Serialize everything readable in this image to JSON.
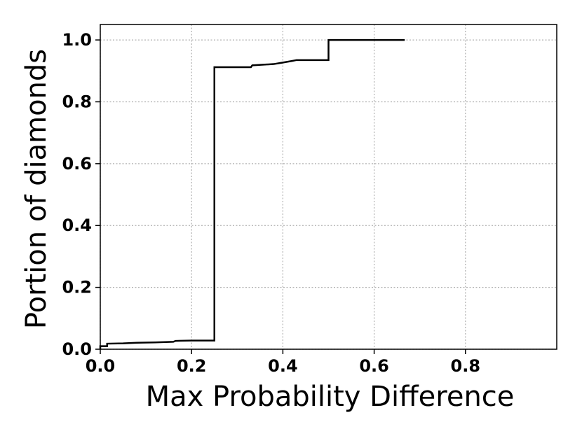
{
  "chart_data": {
    "type": "line",
    "title": "",
    "xlabel": "Max Probability Difference",
    "ylabel": "Portion of diamonds",
    "xlim": [
      0.0,
      1.0
    ],
    "ylim": [
      0.0,
      1.05
    ],
    "xticks": [
      0.0,
      0.2,
      0.4,
      0.6,
      0.8
    ],
    "xtick_labels": [
      "0.0",
      "0.2",
      "0.4",
      "0.6",
      "0.8"
    ],
    "yticks": [
      0.0,
      0.2,
      0.4,
      0.6,
      0.8,
      1.0
    ],
    "ytick_labels": [
      "0.0",
      "0.2",
      "0.4",
      "0.6",
      "0.8",
      "1.0"
    ],
    "grid": true,
    "step": true,
    "series": [
      {
        "color": "#000000",
        "x": [
          0.0,
          0.0,
          0.015,
          0.015,
          0.05,
          0.08,
          0.12,
          0.16,
          0.165,
          0.2,
          0.25,
          0.25,
          0.33,
          0.333,
          0.38,
          0.4,
          0.42,
          0.43,
          0.5,
          0.5,
          0.667
        ],
        "y": [
          0.0,
          0.01,
          0.01,
          0.018,
          0.019,
          0.021,
          0.022,
          0.024,
          0.027,
          0.028,
          0.028,
          0.912,
          0.912,
          0.918,
          0.922,
          0.927,
          0.932,
          0.935,
          0.935,
          1.0,
          1.0
        ]
      }
    ]
  }
}
